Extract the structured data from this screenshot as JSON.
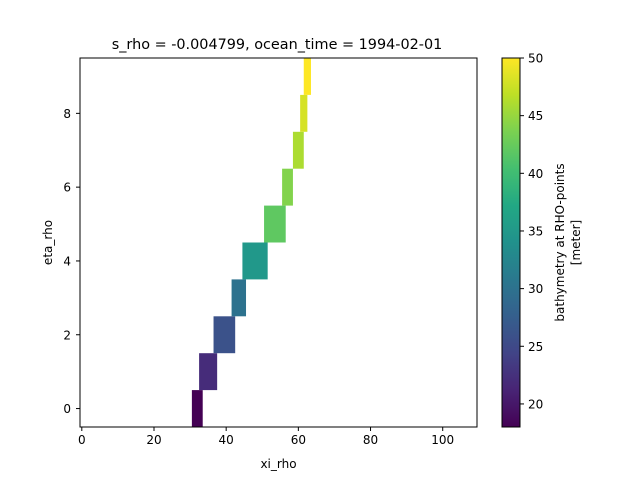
{
  "chart_data": {
    "type": "heatmap",
    "title": "s_rho = -0.004799, ocean_time = 1994-02-01",
    "xlabel": "xi_rho",
    "ylabel": "eta_rho",
    "xlim": [
      -0.5,
      109.5
    ],
    "ylim": [
      -0.5,
      9.5
    ],
    "xticks": [
      0,
      20,
      40,
      60,
      80,
      100
    ],
    "yticks": [
      0,
      2,
      4,
      6,
      8
    ],
    "colormap": "viridis",
    "colorbar": {
      "label_line1": "bathymetry at RHO-points",
      "label_line2": "[meter]",
      "range": [
        18,
        50
      ],
      "ticks": [
        20,
        25,
        30,
        35,
        40,
        45,
        50
      ]
    },
    "cells": [
      {
        "eta": 0,
        "xi_start": 31,
        "xi_end": 33,
        "value": 18
      },
      {
        "eta": 1,
        "xi_start": 33,
        "xi_end": 37,
        "value": 22
      },
      {
        "eta": 2,
        "xi_start": 37,
        "xi_end": 42,
        "value": 26
      },
      {
        "eta": 3,
        "xi_start": 42,
        "xi_end": 45,
        "value": 30
      },
      {
        "eta": 4,
        "xi_start": 45,
        "xi_end": 51,
        "value": 35
      },
      {
        "eta": 5,
        "xi_start": 51,
        "xi_end": 56,
        "value": 42
      },
      {
        "eta": 6,
        "xi_start": 56,
        "xi_end": 58,
        "value": 44
      },
      {
        "eta": 7,
        "xi_start": 59,
        "xi_end": 61,
        "value": 46
      },
      {
        "eta": 8,
        "xi_start": 61,
        "xi_end": 62,
        "value": 48
      },
      {
        "eta": 9,
        "xi_start": 62,
        "xi_end": 63,
        "value": 50
      }
    ]
  }
}
